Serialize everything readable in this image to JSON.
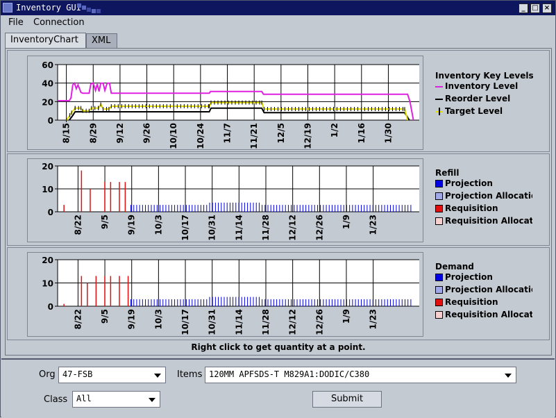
{
  "window": {
    "title": "Inventory GUI",
    "minimize": "_",
    "maximize": "□",
    "close": "×"
  },
  "menu": {
    "file": "File",
    "connection": "Connection"
  },
  "tabs": [
    {
      "label": "InventoryChart",
      "active": true
    },
    {
      "label": "XML",
      "active": false
    }
  ],
  "hint": "Right click to get quantity at a point.",
  "form": {
    "org_label": "Org",
    "org_value": "47-FSB",
    "items_label": "Items",
    "items_value": "120MM APFSDS-T M829A1:DODIC/C380",
    "class_label": "Class",
    "class_value": "All",
    "submit_label": "Submit"
  },
  "chart_data": [
    {
      "type": "line",
      "title": "Inventory Key Levels",
      "x_ticks": [
        "8/15",
        "8/29",
        "9/12",
        "9/26",
        "10/10",
        "10/24",
        "11/7",
        "11/21",
        "12/5",
        "12/19",
        "1/2",
        "1/16",
        "1/30"
      ],
      "ylim": [
        0,
        60
      ],
      "y_ticks": [
        0,
        20,
        40,
        60
      ],
      "legend_placement": "right",
      "grid": true,
      "series": [
        {
          "name": "Inventory Level",
          "color": "#e020e0",
          "points": [
            [
              0,
              21
            ],
            [
              2,
              21
            ],
            [
              2.3,
              24
            ],
            [
              2.6,
              38
            ],
            [
              2.9,
              40
            ],
            [
              3.2,
              34
            ],
            [
              3.5,
              38
            ],
            [
              4.0,
              30
            ],
            [
              4.3,
              29
            ],
            [
              5.4,
              29
            ],
            [
              5.7,
              39
            ],
            [
              6.1,
              40
            ],
            [
              6.5,
              32
            ],
            [
              6.8,
              39
            ],
            [
              7.1,
              31
            ],
            [
              7.4,
              40
            ],
            [
              7.8,
              40
            ],
            [
              8.1,
              32
            ],
            [
              8.5,
              40
            ],
            [
              8.9,
              40
            ],
            [
              9.2,
              29
            ],
            [
              26,
              29
            ],
            [
              26.2,
              31
            ],
            [
              35,
              31
            ],
            [
              35.3,
              28
            ],
            [
              60,
              28
            ],
            [
              60.4,
              20
            ],
            [
              61,
              0
            ]
          ]
        },
        {
          "name": "Reorder Level",
          "color": "#000000",
          "points": [
            [
              2,
              0
            ],
            [
              2.6,
              5
            ],
            [
              3,
              9
            ],
            [
              26,
              9
            ],
            [
              26.3,
              13
            ],
            [
              35,
              13
            ],
            [
              35.4,
              8
            ],
            [
              59.5,
              8
            ],
            [
              60.3,
              0
            ]
          ]
        },
        {
          "name": "Target Level",
          "color": "#e8e000",
          "points": [
            [
              1.5,
              0
            ],
            [
              2.4,
              8
            ],
            [
              3,
              13
            ],
            [
              4,
              13
            ],
            [
              4.3,
              10
            ],
            [
              5.4,
              10
            ],
            [
              5.8,
              13
            ],
            [
              7,
              13
            ],
            [
              7.4,
              17
            ],
            [
              7.8,
              12
            ],
            [
              8.8,
              12
            ],
            [
              9.2,
              15
            ],
            [
              26,
              15
            ],
            [
              26.3,
              19
            ],
            [
              35,
              19
            ],
            [
              35.4,
              12
            ],
            [
              59.5,
              12
            ],
            [
              60,
              0
            ]
          ]
        }
      ]
    },
    {
      "type": "bar",
      "title": "Refill",
      "x_ticks": [
        "8/22",
        "9/5",
        "9/19",
        "10/3",
        "10/17",
        "10/31",
        "11/14",
        "11/28",
        "12/12",
        "12/26",
        "1/9",
        "1/23"
      ],
      "ylim": [
        0,
        20
      ],
      "y_ticks": [
        0,
        10,
        20
      ],
      "legend_placement": "right",
      "series": [
        {
          "name": "Projection",
          "color": "#0000e0"
        },
        {
          "name": "Projection Allocation",
          "color": "#a0a8e8"
        },
        {
          "name": "Requisition",
          "color": "#e01010"
        },
        {
          "name": "Requisition Allocation",
          "color": "#f8d0d0"
        }
      ],
      "requisition_bars": [
        [
          1,
          3
        ],
        [
          4,
          18
        ],
        [
          5.5,
          10
        ],
        [
          8,
          13
        ],
        [
          9,
          13
        ],
        [
          10.5,
          13
        ],
        [
          11.5,
          13
        ]
      ],
      "projection_runs": [
        [
          12.5,
          26,
          3
        ],
        [
          26,
          35,
          4
        ],
        [
          35,
          61,
          3
        ]
      ]
    },
    {
      "type": "bar",
      "title": "Demand",
      "x_ticks": [
        "8/22",
        "9/5",
        "9/19",
        "10/3",
        "10/17",
        "10/31",
        "11/14",
        "11/28",
        "12/12",
        "12/26",
        "1/9",
        "1/23"
      ],
      "ylim": [
        0,
        20
      ],
      "y_ticks": [
        0,
        10,
        20
      ],
      "legend_placement": "right",
      "series": [
        {
          "name": "Projection",
          "color": "#0000e0"
        },
        {
          "name": "Projection Allocation",
          "color": "#a0a8e8"
        },
        {
          "name": "Requisition",
          "color": "#e01010"
        },
        {
          "name": "Requisition Allocation",
          "color": "#f8d0d0"
        }
      ],
      "requisition_bars": [
        [
          1,
          1
        ],
        [
          4,
          13
        ],
        [
          5,
          10
        ],
        [
          6.5,
          13
        ],
        [
          8,
          13
        ],
        [
          9,
          13
        ],
        [
          10.5,
          13
        ],
        [
          12,
          13
        ]
      ],
      "projection_runs": [
        [
          12.5,
          26,
          3
        ],
        [
          26,
          35,
          4
        ],
        [
          35,
          61,
          3
        ]
      ]
    }
  ]
}
